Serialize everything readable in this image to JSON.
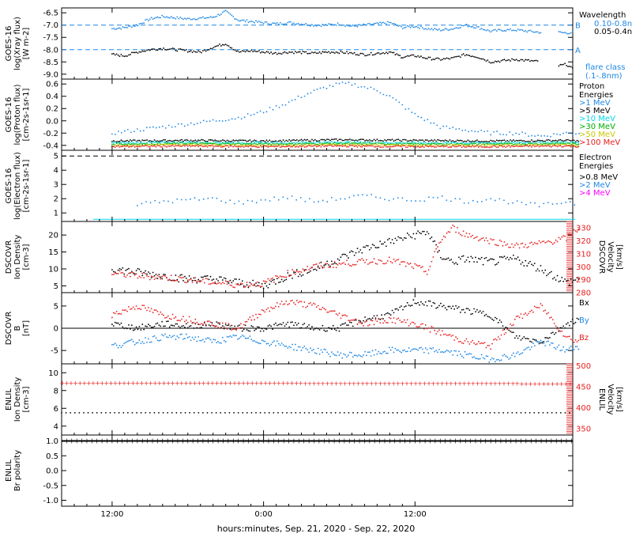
{
  "colors": {
    "black": "#000000",
    "blue": "#1e88e5",
    "cyan": "#00d8e8",
    "green": "#00b000",
    "yellow": "#c8c800",
    "orange": "#ff8c00",
    "red": "#e82020",
    "magenta": "#ff00ff"
  },
  "chart_data": [
    {
      "id": "xray",
      "type": "scatter",
      "ylabel": "GOES-16 log(Xray flux) [W m-2]",
      "ylabel_lines": [
        "GOES-16",
        "log(Xray flux)",
        "[W m-2]"
      ],
      "yticks": [
        "-6.5",
        "-7.0",
        "-7.5",
        "-8.0",
        "-8.5",
        "-9.0"
      ],
      "ylim": [
        -9.2,
        -6.3
      ],
      "legend_title": "Wavelength",
      "series": [
        {
          "name": "0.10-0.8nm",
          "color": "blue",
          "x": [
            0,
            1,
            2,
            3,
            4,
            5,
            6,
            7,
            8,
            9,
            10,
            11,
            12,
            13,
            14,
            15,
            16,
            17,
            18,
            19,
            20,
            21,
            22,
            23,
            24,
            25,
            26,
            27,
            28,
            29,
            30,
            31,
            32,
            33,
            34,
            34.5,
            35.5,
            36,
            36.5
          ],
          "y": [
            -7.15,
            -7.1,
            -7.0,
            -6.75,
            -6.65,
            -6.7,
            -6.75,
            -6.72,
            -6.68,
            -6.45,
            -6.8,
            -6.85,
            -6.9,
            -6.95,
            -6.9,
            -6.95,
            -7.0,
            -7.0,
            -6.95,
            -7.05,
            -7.0,
            -6.95,
            -6.9,
            -7.1,
            -7.05,
            -7.15,
            -7.2,
            -7.15,
            -7.0,
            -7.1,
            -7.25,
            -7.2,
            -7.2,
            -7.25,
            -7.3,
            -7.3,
            -7.3,
            -7.32,
            -7.3
          ]
        },
        {
          "name": "0.05-0.4nm",
          "color": "black",
          "x": [
            0,
            1,
            2,
            3,
            4,
            5,
            6,
            7,
            8,
            9,
            10,
            11,
            12,
            13,
            14,
            15,
            16,
            17,
            18,
            19,
            20,
            21,
            22,
            23,
            24,
            25,
            26,
            27,
            28,
            29,
            30,
            31,
            32,
            33,
            34,
            35,
            36,
            36.5
          ],
          "y": [
            -8.2,
            -8.25,
            -8.1,
            -8.0,
            -7.95,
            -8.0,
            -8.05,
            -8.1,
            -7.9,
            -7.75,
            -8.1,
            -8.05,
            -8.1,
            -8.15,
            -8.1,
            -8.12,
            -8.15,
            -8.1,
            -8.1,
            -8.15,
            -8.2,
            -8.15,
            -8.1,
            -8.3,
            -8.25,
            -8.35,
            -8.4,
            -8.35,
            -8.2,
            -8.3,
            -8.5,
            -8.45,
            -8.4,
            -8.45,
            -8.5,
            -8.7,
            -8.6,
            -8.8
          ]
        }
      ],
      "reference_lines": [
        {
          "y": -7.0,
          "label": "B"
        },
        {
          "y": -8.0,
          "label": "A"
        }
      ],
      "note": "flare class (.1-.8nm)"
    },
    {
      "id": "proton",
      "type": "scatter",
      "ylabel": "GOES-16 log(Proton flux) [cm-2 s-1 sr-1]",
      "ylabel_lines": [
        "GOES-16",
        "log(Proton flux)",
        "[cm-2s-1sr-1]"
      ],
      "yticks": [
        "0.6",
        "0.4",
        "0.2",
        "0.0",
        "-0.2",
        "-0.4"
      ],
      "ylim": [
        -0.48,
        0.68
      ],
      "legend_title": "Proton Energies",
      "series": [
        {
          "name": ">1 MeV",
          "color": "blue",
          "x": [
            0,
            2,
            4,
            6,
            8,
            10,
            12,
            14,
            15,
            16,
            17,
            18,
            19,
            20,
            21,
            22,
            23,
            24,
            25,
            26,
            28,
            30,
            32,
            34,
            36,
            37
          ],
          "y": [
            -0.2,
            -0.15,
            -0.1,
            -0.05,
            0.0,
            0.05,
            0.15,
            0.3,
            0.4,
            0.48,
            0.55,
            0.6,
            0.6,
            0.55,
            0.5,
            0.4,
            0.25,
            0.1,
            0.0,
            -0.1,
            -0.15,
            -0.2,
            -0.2,
            -0.25,
            -0.2,
            -0.2
          ]
        },
        {
          "name": ">5 MeV",
          "color": "black",
          "x": [
            0,
            6,
            12,
            18,
            24,
            30,
            36,
            37
          ],
          "y": [
            -0.33,
            -0.32,
            -0.33,
            -0.31,
            -0.32,
            -0.33,
            -0.32,
            -0.33
          ]
        },
        {
          "name": ">10 MeV",
          "color": "cyan",
          "x": [
            0,
            6,
            12,
            18,
            24,
            30,
            36,
            37
          ],
          "y": [
            -0.36,
            -0.35,
            -0.36,
            -0.35,
            -0.36,
            -0.36,
            -0.35,
            -0.36
          ]
        },
        {
          "name": ">30 MeV",
          "color": "green",
          "x": [
            0,
            6,
            12,
            18,
            24,
            30,
            36,
            37
          ],
          "y": [
            -0.38,
            -0.37,
            -0.38,
            -0.37,
            -0.38,
            -0.38,
            -0.37,
            -0.38
          ]
        },
        {
          "name": ">50 MeV",
          "color": "yellow",
          "x": [
            0,
            6,
            12,
            18,
            24,
            30,
            36,
            37
          ],
          "y": [
            -0.4,
            -0.39,
            -0.4,
            -0.39,
            -0.4,
            -0.4,
            -0.39,
            -0.4
          ]
        },
        {
          "name": ">100 MeV",
          "color": "red",
          "x": [
            0,
            6,
            12,
            18,
            24,
            30,
            36,
            37
          ],
          "y": [
            -0.42,
            -0.41,
            -0.42,
            -0.41,
            -0.42,
            -0.42,
            -0.41,
            -0.42
          ]
        }
      ]
    },
    {
      "id": "electron",
      "type": "scatter",
      "ylabel": "GOES-16 log(Electron flux) [cm-2 s-1 sr-1]",
      "ylabel_lines": [
        "GOES-16",
        "log(Electron flux)",
        "[cm-2s-1sr-1]"
      ],
      "yticks": [
        "5",
        "4",
        "3",
        "2",
        "1"
      ],
      "ylim": [
        0.4,
        5.4
      ],
      "legend_title": "Electron Energies",
      "series": [
        {
          "name": ">0.8 MeV",
          "color": "black",
          "x": [],
          "y": []
        },
        {
          "name": ">2 MeV",
          "color": "blue",
          "x": [
            2,
            4,
            6,
            8,
            10,
            12,
            14,
            16,
            18,
            20,
            22,
            24,
            26,
            28,
            30,
            32,
            34,
            36,
            37
          ],
          "y": [
            1.6,
            1.8,
            1.9,
            2.0,
            1.7,
            1.9,
            2.1,
            1.8,
            2.0,
            2.2,
            2.0,
            1.9,
            2.1,
            1.8,
            2.0,
            1.7,
            1.5,
            1.8,
            1.6
          ]
        },
        {
          "name": ">4 MeV",
          "color": "magenta",
          "x": [],
          "y": []
        }
      ],
      "baseline": {
        "y": 0.55,
        "color": "cyan"
      },
      "reference_lines": [
        {
          "y": 5.0
        }
      ]
    },
    {
      "id": "dscovr-plasma",
      "type": "scatter",
      "ylabel": "DSCOVR Ion Density [cm-3]",
      "ylabel_lines": [
        "DSCOVR",
        "Ion Density",
        "[cm-3]"
      ],
      "yticks": [
        "20",
        "15",
        "10",
        "5"
      ],
      "ylim": [
        3,
        24
      ],
      "y2label_lines": [
        "DSCOVR",
        "Velocity",
        "[km/s]"
      ],
      "y2ticks": [
        "330",
        "320",
        "310",
        "300",
        "290",
        "280"
      ],
      "y2lim": [
        280,
        335
      ],
      "series": [
        {
          "name": "Ion Density",
          "color": "black",
          "axis": "left",
          "x": [
            0,
            2,
            4,
            6,
            8,
            10,
            12,
            14,
            16,
            18,
            20,
            22,
            24,
            25,
            26,
            27,
            28,
            30,
            32,
            34,
            36,
            37
          ],
          "y": [
            10,
            9,
            8,
            7,
            7,
            6,
            5,
            8,
            10,
            13,
            16,
            18,
            20,
            21,
            14,
            12,
            13,
            12,
            13,
            10,
            6,
            7
          ]
        },
        {
          "name": "Velocity",
          "color": "red",
          "axis": "right",
          "x": [
            0,
            2,
            4,
            6,
            8,
            10,
            12,
            14,
            16,
            18,
            20,
            22,
            24,
            25,
            26,
            27,
            28,
            30,
            32,
            34,
            36,
            37
          ],
          "y": [
            295,
            293,
            292,
            290,
            288,
            286,
            287,
            295,
            300,
            302,
            304,
            305,
            300,
            296,
            320,
            330,
            325,
            320,
            316,
            318,
            322,
            330
          ]
        }
      ]
    },
    {
      "id": "dscovr-mag",
      "type": "scatter",
      "ylabel": "DSCOVR B [nT]",
      "ylabel_lines": [
        "DSCOVR",
        "B",
        "[nT]"
      ],
      "yticks": [
        "5",
        "0",
        "-5"
      ],
      "ylim": [
        -8,
        8
      ],
      "series": [
        {
          "name": "Bx",
          "color": "black",
          "x": [
            0,
            2,
            4,
            6,
            8,
            10,
            12,
            14,
            16,
            18,
            20,
            22,
            24,
            26,
            28,
            30,
            32,
            34,
            36,
            37
          ],
          "y": [
            1,
            0,
            1,
            0.5,
            1,
            0,
            0,
            1,
            0,
            0,
            2,
            3,
            6,
            5,
            4,
            3,
            -2,
            -3,
            1,
            2
          ]
        },
        {
          "name": "By",
          "color": "blue",
          "x": [
            0,
            2,
            4,
            6,
            8,
            10,
            12,
            14,
            16,
            18,
            20,
            22,
            24,
            26,
            28,
            30,
            32,
            34,
            36,
            37
          ],
          "y": [
            -4,
            -3,
            -2,
            -2,
            -3,
            -2,
            -3,
            -4,
            -5,
            -6,
            -6,
            -5,
            -5,
            -5,
            -6,
            -7,
            -6,
            -3,
            -5,
            -4
          ]
        },
        {
          "name": "Bz",
          "color": "red",
          "x": [
            0,
            2,
            4,
            6,
            8,
            10,
            12,
            14,
            16,
            18,
            20,
            22,
            24,
            26,
            28,
            30,
            32,
            34,
            36,
            37
          ],
          "y": [
            3,
            5,
            3,
            2,
            1,
            0,
            4,
            6,
            5,
            3,
            1,
            2,
            1,
            -1,
            -3,
            -4,
            2,
            5,
            -2,
            -3
          ]
        }
      ],
      "reference_lines": [
        {
          "y": 0
        }
      ]
    },
    {
      "id": "enlil-plasma",
      "type": "line",
      "ylabel": "ENLIL Ion Density [cm-3]",
      "ylabel_lines": [
        "ENLIL",
        "Ion Density",
        "[cm-3]"
      ],
      "yticks": [
        "10",
        "8",
        "6",
        "4"
      ],
      "ylim": [
        3,
        11
      ],
      "y2label_lines": [
        "ENLIL",
        "Velocity",
        "[km/s]"
      ],
      "y2ticks": [
        "500",
        "450",
        "400",
        "350"
      ],
      "y2lim": [
        335,
        505
      ],
      "series": [
        {
          "name": "Ion Density",
          "color": "black",
          "axis": "left",
          "x": [
            0,
            37
          ],
          "y": [
            5.5,
            5.5
          ]
        },
        {
          "name": "Velocity",
          "color": "red",
          "axis": "right",
          "x": [
            0,
            37
          ],
          "y": [
            460,
            458
          ]
        }
      ]
    },
    {
      "id": "enlil-polarity",
      "type": "line",
      "ylabel": "ENLIL Br polarity",
      "ylabel_lines": [
        "ENLIL",
        "Br polarity"
      ],
      "yticks": [
        "1.0",
        "0.5",
        "0.0",
        "-0.5",
        "-1.0"
      ],
      "ylim": [
        -1.2,
        1.2
      ],
      "series": [
        {
          "name": "polarity",
          "color": "black",
          "x": [
            -4,
            40
          ],
          "y": [
            1.0,
            1.0
          ]
        }
      ]
    }
  ],
  "xaxis": {
    "ticks": [
      {
        "x": 0,
        "label": "12:00"
      },
      {
        "x": 12,
        "label": "0:00"
      },
      {
        "x": 24,
        "label": "12:00"
      }
    ],
    "label": "hours:minutes, Sep. 21, 2020 - Sep. 22, 2020"
  }
}
